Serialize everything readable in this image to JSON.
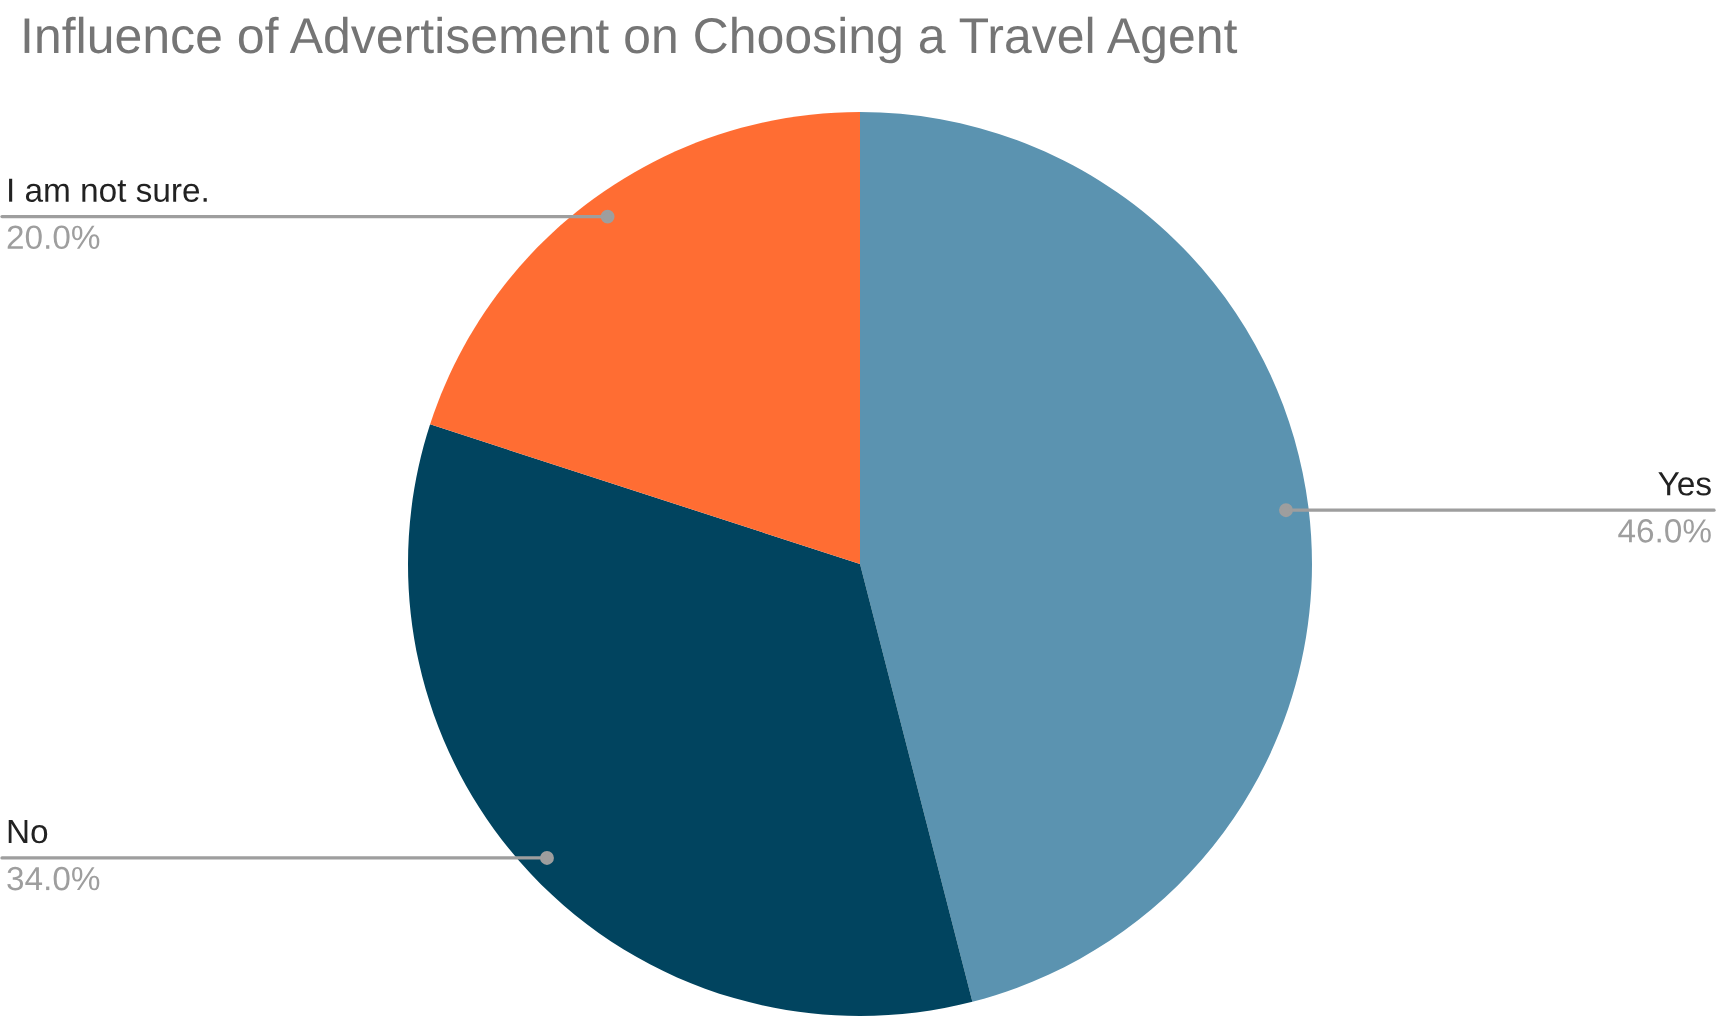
{
  "chart_data": {
    "type": "pie",
    "title": "Influence of Advertisement on Choosing a Travel Agent",
    "categories": [
      "Yes",
      "No",
      "I am not sure."
    ],
    "values": [
      46,
      34,
      20
    ],
    "value_labels": [
      "46.0%",
      "34.0%",
      "20.0%"
    ],
    "colors": [
      "#5b93b0",
      "#01445f",
      "#ff6d33"
    ],
    "legend": false
  }
}
